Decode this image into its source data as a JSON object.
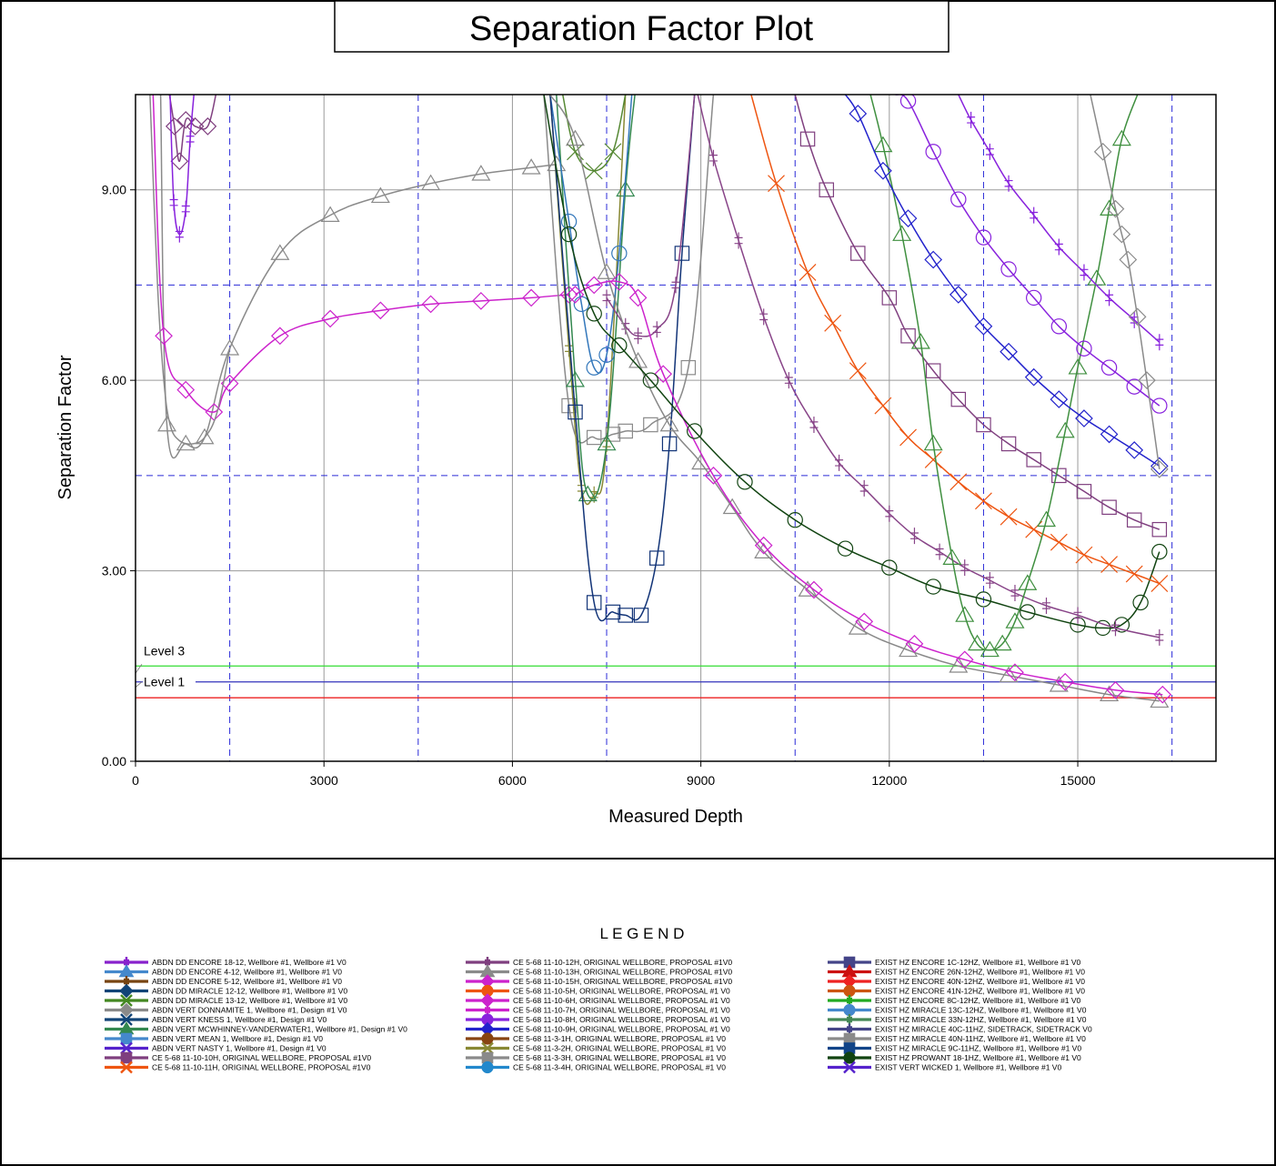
{
  "chart_data": {
    "type": "line",
    "title": "Separation Factor Plot",
    "xlabel": "Measured Depth",
    "ylabel": "Separation Factor",
    "xlim": [
      0,
      17200
    ],
    "ylim": [
      0,
      10.5
    ],
    "xticks": [
      0,
      3000,
      6000,
      9000,
      12000,
      15000
    ],
    "xtick_labels": [
      "0",
      "3000",
      "6000",
      "9000",
      "12000",
      "15000"
    ],
    "yticks": [
      0,
      3,
      6,
      9
    ],
    "ytick_labels": [
      "0.00",
      "3.00",
      "6.00",
      "9.00"
    ],
    "grid": true,
    "colors": {
      "grid": "#9a9a9a",
      "dash_grid": "#2a2ad8",
      "level3": "#33dd33",
      "level1": "#3333bb",
      "level_red": "#ee2222"
    },
    "dashed_x": [
      1500,
      4500,
      7500,
      10500,
      13500,
      16500
    ],
    "dashed_y": [
      4.5,
      7.5
    ],
    "levels": [
      {
        "name": "Level 3",
        "value": 1.5,
        "color": "#33dd33"
      },
      {
        "name": "Level 1",
        "value": 1.25,
        "color": "#3333bb"
      },
      {
        "name": "",
        "value": 1.0,
        "color": "#ee2222"
      }
    ],
    "series": [
      {
        "color": "#8a8a8a",
        "marker": "triangle",
        "x": [
          400,
          500,
          800,
          1100,
          1500,
          2300,
          3100,
          3900,
          4700,
          5500,
          6300,
          6700
        ],
        "y": [
          10.5,
          5.3,
          5.0,
          5.1,
          6.5,
          8.0,
          8.6,
          8.9,
          9.1,
          9.25,
          9.35,
          9.4
        ]
      },
      {
        "color": "#cc22cc",
        "marker": "diamond",
        "x": [
          280,
          450,
          800,
          1250,
          1500,
          2300,
          3100,
          3900,
          4700,
          5500,
          6300,
          6900
        ],
        "y": [
          10.5,
          6.7,
          5.85,
          5.5,
          5.95,
          6.7,
          6.97,
          7.1,
          7.2,
          7.25,
          7.3,
          7.35
        ]
      },
      {
        "color": "#8a8a8a",
        "marker": "none",
        "x": [
          230,
          350,
          450,
          550,
          700,
          900,
          1100,
          1300,
          1500
        ],
        "y": [
          10.5,
          7.5,
          6.0,
          5.3,
          5.05,
          5.0,
          5.1,
          5.5,
          6.5
        ]
      },
      {
        "color": "#7f3f7f",
        "marker": "diamond",
        "x": [
          540,
          620,
          700,
          800,
          950,
          1150,
          1280
        ],
        "y": [
          10.5,
          10.0,
          9.45,
          10.1,
          10.0,
          10.0,
          10.5
        ]
      },
      {
        "color": "#8822dd",
        "marker": "plus",
        "x": [
          550,
          610,
          700,
          800,
          870,
          930
        ],
        "y": [
          10.5,
          8.8,
          8.3,
          8.7,
          9.8,
          10.5
        ]
      },
      {
        "color": "#8a8a8a",
        "marker": "square",
        "x": [
          6500,
          6900,
          7300,
          7600,
          7800,
          8200,
          8800,
          9200
        ],
        "y": [
          10.5,
          5.6,
          5.1,
          5.15,
          5.2,
          5.3,
          6.2,
          10.5
        ]
      },
      {
        "color": "#888833",
        "marker": "plus",
        "x": [
          6600,
          6900,
          7100,
          7300,
          7500,
          7800
        ],
        "y": [
          10.5,
          6.5,
          4.3,
          4.2,
          5.0,
          10.5
        ]
      },
      {
        "color": "#33884f",
        "marker": "triangle",
        "x": [
          6700,
          7000,
          7200,
          7500,
          7800,
          7950
        ],
        "y": [
          10.5,
          6.0,
          4.2,
          5.0,
          9.0,
          10.5
        ]
      },
      {
        "color": "#558833",
        "marker": "x",
        "x": [
          6800,
          7000,
          7300,
          7600,
          7800
        ],
        "y": [
          10.5,
          9.6,
          9.3,
          9.6,
          10.5
        ]
      },
      {
        "color": "#3377bb",
        "marker": "circle",
        "x": [
          6600,
          6900,
          7100,
          7300,
          7500,
          7700,
          7900
        ],
        "y": [
          10.5,
          8.5,
          7.2,
          6.2,
          6.4,
          8.0,
          10.5
        ]
      },
      {
        "color": "#113377",
        "marker": "square",
        "x": [
          6600,
          7000,
          7300,
          7600,
          7800,
          8050,
          8300,
          8500,
          8700,
          8900
        ],
        "y": [
          10.5,
          5.5,
          2.5,
          2.35,
          2.3,
          2.3,
          3.2,
          5.0,
          8.0,
          10.5
        ]
      },
      {
        "color": "#884488",
        "marker": "plus",
        "x": [
          7500,
          7800,
          8000,
          8300,
          8600,
          8900
        ],
        "y": [
          7.3,
          6.85,
          6.7,
          6.8,
          7.5,
          10.5
        ]
      },
      {
        "color": "#888888",
        "marker": "triangle",
        "x": [
          6600,
          7000,
          7500,
          8000,
          8500,
          9000,
          9500,
          10000,
          10700,
          11500,
          12300,
          13100,
          13900,
          14700,
          15500,
          16300
        ],
        "y": [
          10.5,
          9.8,
          7.7,
          6.3,
          5.3,
          4.7,
          4.0,
          3.3,
          2.7,
          2.1,
          1.75,
          1.5,
          1.35,
          1.2,
          1.05,
          0.95
        ]
      },
      {
        "color": "#cc22cc",
        "marker": "diamond",
        "x": [
          7000,
          7300,
          7700,
          8000,
          8400,
          9200,
          10000,
          10800,
          11600,
          12400,
          13200,
          14000,
          14800,
          15600,
          16350
        ],
        "y": [
          7.35,
          7.5,
          7.55,
          7.3,
          6.1,
          4.5,
          3.4,
          2.7,
          2.2,
          1.85,
          1.6,
          1.4,
          1.25,
          1.12,
          1.05
        ]
      },
      {
        "color": "#114411",
        "marker": "circle",
        "x": [
          6500,
          6900,
          7300,
          7700,
          8200,
          8900,
          9700,
          10500,
          11300,
          12000,
          12700,
          13500,
          14200,
          15000,
          15400,
          15700,
          16000,
          16300
        ],
        "y": [
          10.5,
          8.3,
          7.05,
          6.55,
          6.0,
          5.2,
          4.4,
          3.8,
          3.35,
          3.05,
          2.75,
          2.55,
          2.35,
          2.15,
          2.1,
          2.15,
          2.5,
          3.3
        ]
      },
      {
        "color": "#884488",
        "marker": "plus",
        "x": [
          8950,
          9200,
          9600,
          10000,
          10400,
          10800,
          11200,
          11600,
          12000,
          12400,
          12800,
          13200,
          13600,
          14000,
          14500,
          15000,
          15600,
          16300
        ],
        "y": [
          10.5,
          9.5,
          8.2,
          7.0,
          6.0,
          5.3,
          4.7,
          4.3,
          3.9,
          3.55,
          3.3,
          3.05,
          2.85,
          2.65,
          2.45,
          2.3,
          2.1,
          1.95
        ]
      },
      {
        "color": "#ee5511",
        "marker": "x",
        "x": [
          9800,
          10200,
          10700,
          11100,
          11500,
          11900,
          12300,
          12700,
          13100,
          13500,
          13900,
          14300,
          14700,
          15100,
          15500,
          15900,
          16300
        ],
        "y": [
          10.5,
          9.1,
          7.7,
          6.9,
          6.15,
          5.6,
          5.1,
          4.75,
          4.4,
          4.1,
          3.85,
          3.65,
          3.45,
          3.25,
          3.1,
          2.95,
          2.8
        ]
      },
      {
        "color": "#7f3f7f",
        "marker": "square",
        "x": [
          10500,
          10700,
          11000,
          11500,
          12000,
          12300,
          12700,
          13100,
          13500,
          13900,
          14300,
          14700,
          15100,
          15500,
          15900,
          16300
        ],
        "y": [
          10.5,
          9.8,
          9.0,
          8.0,
          7.3,
          6.7,
          6.15,
          5.7,
          5.3,
          5.0,
          4.75,
          4.5,
          4.25,
          4.0,
          3.8,
          3.65
        ]
      },
      {
        "color": "#3f8f3f",
        "marker": "triangle",
        "x": [
          11700,
          11900,
          12200,
          12500,
          12700,
          13000,
          13200,
          13400,
          13600,
          13800,
          14000,
          14200,
          14500,
          14800,
          15000,
          15300,
          15500,
          15700,
          15950
        ],
        "y": [
          10.5,
          9.7,
          8.3,
          6.6,
          5.0,
          3.2,
          2.3,
          1.85,
          1.75,
          1.85,
          2.2,
          2.8,
          3.8,
          5.2,
          6.2,
          7.6,
          8.7,
          9.8,
          10.5
        ]
      },
      {
        "color": "#2222cc",
        "marker": "diamond",
        "x": [
          11300,
          11500,
          11900,
          12300,
          12700,
          13100,
          13500,
          13900,
          14300,
          14700,
          15100,
          15500,
          15900,
          16300
        ],
        "y": [
          10.5,
          10.2,
          9.3,
          8.55,
          7.9,
          7.35,
          6.85,
          6.45,
          6.05,
          5.7,
          5.4,
          5.15,
          4.9,
          4.65
        ]
      },
      {
        "color": "#8822dd",
        "marker": "circle",
        "x": [
          12100,
          12300,
          12700,
          13100,
          13500,
          13900,
          14300,
          14700,
          15100,
          15500,
          15900,
          16300
        ],
        "y": [
          10.5,
          10.4,
          9.6,
          8.85,
          8.25,
          7.75,
          7.3,
          6.85,
          6.5,
          6.2,
          5.9,
          5.6
        ]
      },
      {
        "color": "#8822dd",
        "marker": "plus",
        "x": [
          13100,
          13300,
          13600,
          13900,
          14300,
          14700,
          15100,
          15500,
          15900,
          16300
        ],
        "y": [
          10.5,
          10.1,
          9.6,
          9.1,
          8.6,
          8.1,
          7.7,
          7.3,
          6.95,
          6.6
        ]
      },
      {
        "color": "#8a8a8a",
        "marker": "diamond",
        "x": [
          15200,
          15400,
          15600,
          15700,
          15800,
          15950,
          16100,
          16300
        ],
        "y": [
          10.5,
          9.6,
          8.7,
          8.3,
          7.9,
          7.0,
          6.0,
          4.6
        ]
      }
    ],
    "legend_title": "L E G E N D",
    "legend": [
      {
        "label": "ABDN DD ENCORE 18-12, Wellbore #1, Wellbore #1 V0",
        "color": "#8822cc",
        "marker": "plus"
      },
      {
        "label": "ABDN DD ENCORE 4-12, Wellbore #1, Wellbore #1 V0",
        "color": "#4488cc",
        "marker": "triangle"
      },
      {
        "label": "ABDN DD ENCORE 5-12, Wellbore #1, Wellbore #1 V0",
        "color": "#774411",
        "marker": "plus"
      },
      {
        "label": "ABDN DD MIRACLE 12-12, Wellbore #1, Wellbore #1 V0",
        "color": "#114477",
        "marker": "diamond"
      },
      {
        "label": "ABDN DD MIRACLE 13-12, Wellbore #1, Wellbore #1 V0",
        "color": "#448822",
        "marker": "x"
      },
      {
        "label": "ABDN VERT DONNAMITE 1, Wellbore #1, Design #1 V0",
        "color": "#8a8a8a",
        "marker": "diamond"
      },
      {
        "label": "ABDN VERT KNESS 1, Wellbore #1, Design #1 V0",
        "color": "#114477",
        "marker": "x"
      },
      {
        "label": "ABDN VERT MCWHINNEY-VANDERWATER1, Wellbore #1, Design #1 V0",
        "color": "#33884f",
        "marker": "triangle"
      },
      {
        "label": "ABDN VERT MEAN 1, Wellbore #1, Design #1 V0",
        "color": "#4488cc",
        "marker": "square"
      },
      {
        "label": "ABDN VERT NASTY 1, Wellbore #1, Design #1 V0",
        "color": "#5522cc",
        "marker": "x"
      },
      {
        "label": "CE 5-68 11-10-10H, ORIGINAL WELLBORE, PROPOSAL #1V0",
        "color": "#7f3f7f",
        "marker": "square"
      },
      {
        "label": "CE 5-68 11-10-11H, ORIGINAL WELLBORE, PROPOSAL #1V0",
        "color": "#ee5511",
        "marker": "x"
      },
      {
        "label": "CE 5-68 11-10-12H, ORIGINAL WELLBORE, PROPOSAL #1V0",
        "color": "#7f3f7f",
        "marker": "plus"
      },
      {
        "label": "CE 5-68 11-10-13H, ORIGINAL WELLBORE, PROPOSAL #1V0",
        "color": "#8a8a8a",
        "marker": "triangle"
      },
      {
        "label": "CE 5-68 11-10-15H, ORIGINAL WELLBORE, PROPOSAL #1V0",
        "color": "#cc22cc",
        "marker": "diamond"
      },
      {
        "label": "CE 5-68 11-10-5H, ORIGINAL WELLBORE, PROPOSAL #1 V0",
        "color": "#ee5511",
        "marker": "circle"
      },
      {
        "label": "CE 5-68 11-10-6H, ORIGINAL WELLBORE, PROPOSAL #1 V0",
        "color": "#cc22cc",
        "marker": "diamond"
      },
      {
        "label": "CE 5-68 11-10-7H, ORIGINAL WELLBORE, PROPOSAL #1 V0",
        "color": "#cc22cc",
        "marker": "plus"
      },
      {
        "label": "CE 5-68 11-10-8H, ORIGINAL WELLBORE, PROPOSAL #1 V0",
        "color": "#8822dd",
        "marker": "circle"
      },
      {
        "label": "CE 5-68 11-10-9H, ORIGINAL WELLBORE, PROPOSAL #1 V0",
        "color": "#2222cc",
        "marker": "diamond"
      },
      {
        "label": "CE 5-68 11-3-1H, ORIGINAL WELLBORE, PROPOSAL #1 V0",
        "color": "#884411",
        "marker": "circle"
      },
      {
        "label": "CE 5-68 11-3-2H, ORIGINAL WELLBORE, PROPOSAL #1 V0",
        "color": "#888833",
        "marker": "x"
      },
      {
        "label": "CE 5-68 11-3-3H, ORIGINAL WELLBORE, PROPOSAL #1 V0",
        "color": "#8a8a8a",
        "marker": "square"
      },
      {
        "label": "CE 5-68 11-3-4H, ORIGINAL WELLBORE, PROPOSAL #1 V0",
        "color": "#2288cc",
        "marker": "circle"
      },
      {
        "label": "EXIST HZ ENCORE 1C-12HZ, Wellbore #1, Wellbore #1 V0",
        "color": "#444488",
        "marker": "square"
      },
      {
        "label": "EXIST HZ ENCORE 26N-12HZ, Wellbore #1, Wellbore #1 V0",
        "color": "#cc1111",
        "marker": "triangle"
      },
      {
        "label": "EXIST HZ ENCORE 40N-12HZ, Wellbore #1, Wellbore #1 V0",
        "color": "#ee2222",
        "marker": "diamond"
      },
      {
        "label": "EXIST HZ ENCORE 41N-12HZ, Wellbore #1, Wellbore #1 V0",
        "color": "#cc5511",
        "marker": "circle"
      },
      {
        "label": "EXIST HZ ENCORE 8C-12HZ, Wellbore #1, Wellbore #1 V0",
        "color": "#22aa22",
        "marker": "plus"
      },
      {
        "label": "EXIST HZ MIRACLE 13C-12HZ, Wellbore #1, Wellbore #1 V0",
        "color": "#4488cc",
        "marker": "circle"
      },
      {
        "label": "EXIST HZ MIRACLE 33N-12HZ, Wellbore #1, Wellbore #1 V0",
        "color": "#448855",
        "marker": "plus"
      },
      {
        "label": "EXIST HZ MIRACLE 40C-11HZ, SIDETRACK, SIDETRACK V0",
        "color": "#444488",
        "marker": "plus"
      },
      {
        "label": "EXIST HZ MIRACLE 40N-11HZ, Wellbore #1, Wellbore #1 V0",
        "color": "#8a8a8a",
        "marker": "square"
      },
      {
        "label": "EXIST HZ MIRACLE 9C-11HZ, Wellbore #1, Wellbore #1 V0",
        "color": "#114488",
        "marker": "square"
      },
      {
        "label": "EXIST HZ PROWANT 18-1HZ, Wellbore #1, Wellbore #1 V0",
        "color": "#114411",
        "marker": "circle"
      },
      {
        "label": "EXIST VERT WICKED 1, Wellbore #1, Wellbore #1 V0",
        "color": "#5522cc",
        "marker": "x"
      }
    ]
  }
}
